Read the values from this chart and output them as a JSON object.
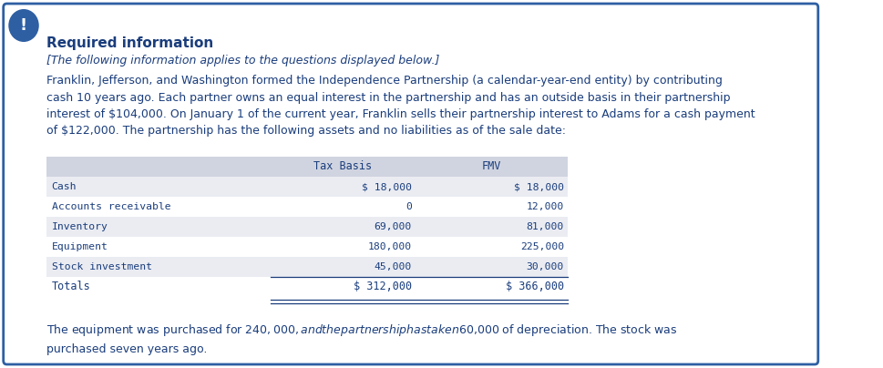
{
  "title": "Required information",
  "subtitle": "[The following information applies to the questions displayed below.]",
  "body_text": "Franklin, Jefferson, and Washington formed the Independence Partnership (a calendar-year-end entity) by contributing\ncash 10 years ago. Each partner owns an equal interest in the partnership and has an outside basis in their partnership\ninterest of $104,000. On January 1 of the current year, Franklin sells their partnership interest to Adams for a cash payment\nof $122,000. The partnership has the following assets and no liabilities as of the sale date:",
  "footer_text": "The equipment was purchased for $240,000, and the partnership has taken $60,000 of depreciation. The stock was\npurchased seven years ago.",
  "table_headers": [
    "",
    "Tax Basis",
    "FMV"
  ],
  "table_rows": [
    [
      "Cash",
      "$ 18,000",
      "$ 18,000"
    ],
    [
      "Accounts receivable",
      "0",
      "12,000"
    ],
    [
      "Inventory",
      "69,000",
      "81,000"
    ],
    [
      "Equipment",
      "180,000",
      "225,000"
    ],
    [
      "Stock investment",
      "45,000",
      "30,000"
    ]
  ],
  "table_totals": [
    "Totals",
    "$ 312,000",
    "$ 366,000"
  ],
  "bg_color": "#ffffff",
  "border_color": "#2e5fa3",
  "title_color": "#1a3d7c",
  "subtitle_color": "#1a3d7c",
  "body_color": "#1a3d7c",
  "table_header_bg": "#d0d4e0",
  "table_row_bg_odd": "#eaecf2",
  "table_row_bg_even": "#ffffff",
  "table_text_color": "#1a3d7c",
  "icon_bg": "#2e5fa3",
  "icon_text": "!",
  "icon_color": "#ffffff"
}
